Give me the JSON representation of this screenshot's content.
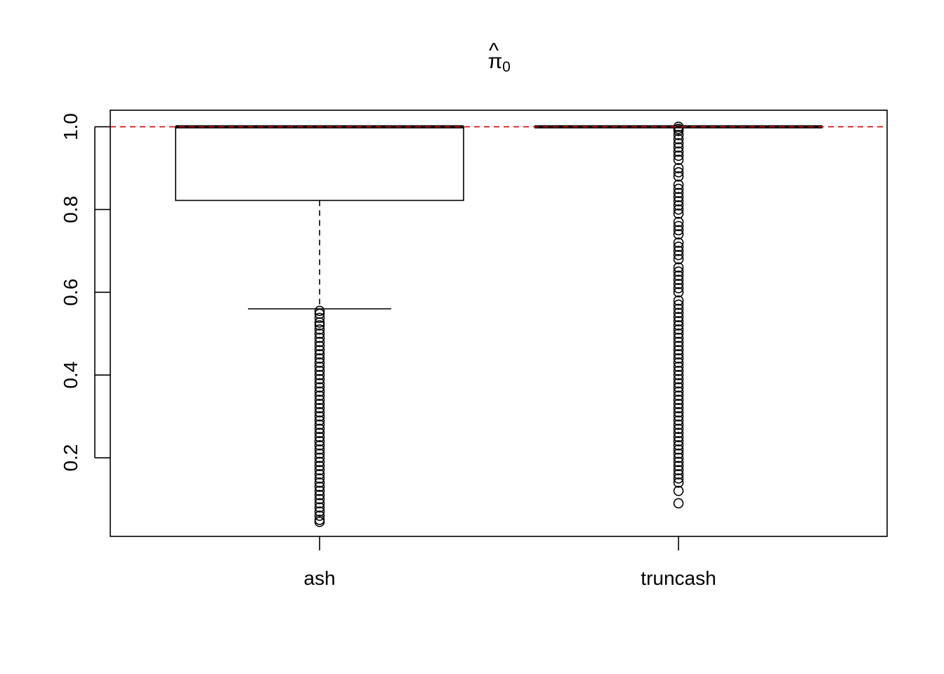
{
  "chart_data": {
    "type": "boxplot",
    "title": "π̂",
    "title_parts": {
      "symbol": "π",
      "hat": "^",
      "subscript": "0"
    },
    "xlabel": "",
    "ylabel": "",
    "ylim": [
      0.01,
      1.04
    ],
    "yticks": [
      0.2,
      0.4,
      0.6,
      0.8,
      1.0
    ],
    "ytick_labels": [
      "0.2",
      "0.4",
      "0.6",
      "0.8",
      "1.0"
    ],
    "categories": [
      "ash",
      "truncash"
    ],
    "reference_line": {
      "y": 1.0,
      "color": "#dd0000",
      "style": "dashed"
    },
    "boxes": [
      {
        "name": "ash",
        "whisker_low": 0.56,
        "q1": 0.822,
        "median": 1.0,
        "q3": 1.0,
        "whisker_high": 1.0,
        "outliers": [
          0.555,
          0.548,
          0.538,
          0.527,
          0.52,
          0.51,
          0.5,
          0.49,
          0.48,
          0.47,
          0.46,
          0.45,
          0.44,
          0.43,
          0.42,
          0.41,
          0.4,
          0.39,
          0.38,
          0.37,
          0.36,
          0.35,
          0.34,
          0.33,
          0.32,
          0.31,
          0.3,
          0.29,
          0.28,
          0.27,
          0.26,
          0.25,
          0.24,
          0.23,
          0.22,
          0.21,
          0.2,
          0.19,
          0.18,
          0.17,
          0.16,
          0.15,
          0.14,
          0.13,
          0.12,
          0.11,
          0.1,
          0.09,
          0.08,
          0.07,
          0.06,
          0.05,
          0.045
        ]
      },
      {
        "name": "truncash",
        "whisker_low": 1.0,
        "q1": 1.0,
        "median": 1.0,
        "q3": 1.0,
        "whisker_high": 1.0,
        "outliers": [
          1.0,
          0.995,
          0.99,
          0.98,
          0.97,
          0.96,
          0.95,
          0.94,
          0.93,
          0.92,
          0.9,
          0.89,
          0.88,
          0.86,
          0.85,
          0.84,
          0.83,
          0.82,
          0.81,
          0.8,
          0.79,
          0.77,
          0.76,
          0.75,
          0.74,
          0.72,
          0.71,
          0.7,
          0.69,
          0.68,
          0.66,
          0.65,
          0.64,
          0.63,
          0.62,
          0.61,
          0.6,
          0.58,
          0.57,
          0.56,
          0.55,
          0.54,
          0.53,
          0.52,
          0.51,
          0.5,
          0.49,
          0.48,
          0.47,
          0.46,
          0.45,
          0.44,
          0.43,
          0.42,
          0.41,
          0.4,
          0.39,
          0.38,
          0.37,
          0.36,
          0.35,
          0.34,
          0.33,
          0.32,
          0.31,
          0.3,
          0.29,
          0.28,
          0.27,
          0.26,
          0.25,
          0.24,
          0.23,
          0.22,
          0.21,
          0.2,
          0.19,
          0.18,
          0.17,
          0.16,
          0.15,
          0.14,
          0.12,
          0.09
        ]
      }
    ]
  }
}
